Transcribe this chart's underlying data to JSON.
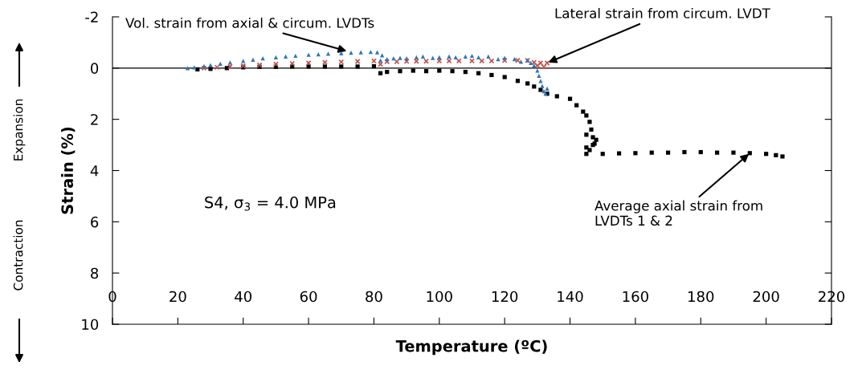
{
  "chart_data": {
    "type": "scatter",
    "xlabel": "Temperature (ºC)",
    "ylabel": "Strain (%)",
    "xlim": [
      0,
      220
    ],
    "xticks": [
      0,
      20,
      40,
      60,
      80,
      100,
      120,
      140,
      160,
      180,
      200,
      220
    ],
    "ylim": [
      10,
      -2
    ],
    "yticks": [
      10,
      8,
      6,
      4,
      2,
      0,
      -2
    ],
    "grid": false,
    "legend": false,
    "ref_lines": [
      {
        "axis": "y",
        "value": 0,
        "label": null,
        "color": "#000000"
      }
    ],
    "series": [
      {
        "color": "#000000",
        "marker": "square",
        "x": [
          26,
          30,
          35,
          40,
          45,
          50,
          55,
          60,
          65,
          70,
          75,
          80,
          82,
          84,
          88,
          92,
          96,
          100,
          104,
          108,
          112,
          116,
          120,
          124,
          127,
          129,
          131,
          133,
          136,
          140,
          142,
          144,
          145,
          146,
          146.5,
          147,
          147.5,
          145,
          145,
          146,
          147,
          148,
          145,
          150,
          155,
          160,
          165,
          170,
          175,
          180,
          185,
          190,
          195,
          200,
          203,
          205
        ],
        "values": [
          0.05,
          0.03,
          0,
          -0.03,
          -0.05,
          -0.05,
          -0.06,
          -0.06,
          -0.06,
          -0.06,
          -0.06,
          -0.07,
          0.2,
          0.15,
          0.12,
          0.1,
          0.12,
          0.1,
          0.12,
          0.15,
          0.2,
          0.27,
          0.35,
          0.5,
          0.6,
          0.72,
          0.85,
          1.0,
          1.1,
          1.2,
          1.45,
          1.7,
          1.85,
          2.1,
          2.4,
          2.7,
          2.95,
          2.6,
          3.1,
          3.2,
          3.0,
          2.8,
          3.35,
          3.35,
          3.33,
          3.32,
          3.3,
          3.3,
          3.28,
          3.28,
          3.3,
          3.3,
          3.32,
          3.35,
          3.4,
          3.45
        ]
      },
      {
        "color": "#c0504d",
        "marker": "cross",
        "x": [
          28,
          32,
          36,
          40,
          45,
          50,
          55,
          60,
          65,
          70,
          75,
          80,
          82,
          84,
          87,
          90,
          93,
          96,
          100,
          103,
          106,
          110,
          113,
          116,
          120,
          124,
          127,
          129,
          130,
          131,
          132,
          133
        ],
        "values": [
          0,
          -0.03,
          -0.06,
          -0.09,
          -0.12,
          -0.15,
          -0.18,
          -0.2,
          -0.22,
          -0.24,
          -0.26,
          -0.28,
          -0.15,
          -0.25,
          -0.25,
          -0.27,
          -0.27,
          -0.27,
          -0.28,
          -0.28,
          -0.28,
          -0.28,
          -0.28,
          -0.28,
          -0.3,
          -0.3,
          -0.3,
          -0.22,
          -0.1,
          -0.2,
          -0.05,
          -0.2
        ]
      },
      {
        "color": "#2e75b6",
        "marker": "triangle",
        "x": [
          23,
          25,
          28,
          30,
          33,
          36,
          40,
          43,
          46,
          50,
          53,
          56,
          60,
          63,
          66,
          70,
          73,
          76,
          79,
          81,
          82,
          82.5,
          84,
          86,
          88,
          90,
          93,
          95,
          98,
          100,
          103,
          105,
          108,
          110,
          112,
          115,
          118,
          120,
          123,
          125,
          127,
          128,
          129,
          130,
          130.5,
          131,
          131.5,
          132,
          132.5,
          133
        ],
        "values": [
          0,
          -0.03,
          -0.08,
          -0.12,
          -0.17,
          -0.22,
          -0.28,
          -0.33,
          -0.38,
          -0.42,
          -0.45,
          -0.48,
          -0.52,
          -0.54,
          -0.56,
          -0.58,
          -0.6,
          -0.62,
          -0.63,
          -0.62,
          -0.3,
          -0.5,
          -0.35,
          -0.38,
          -0.4,
          -0.38,
          -0.42,
          -0.45,
          -0.4,
          -0.42,
          -0.45,
          -0.42,
          -0.45,
          -0.48,
          -0.42,
          -0.45,
          -0.35,
          -0.4,
          -0.35,
          -0.25,
          -0.3,
          -0.2,
          -0.1,
          0.1,
          0.3,
          0.5,
          0.7,
          0.9,
          1.0,
          0.8
        ]
      }
    ],
    "annotations": [
      {
        "text": "Vol. strain from axial & circum. LVDTs",
        "x": 72,
        "y": -0.65
      },
      {
        "text": "Lateral strain from circum. LVDT",
        "x": 133,
        "y": -0.2
      },
      {
        "text": "Average axial strain from\nLVDTs 1 & 2",
        "x": 195,
        "y": 3.32
      },
      "S4, σ$_{3}$ = 4.0 MPa",
      "Expansion",
      "Contraction"
    ]
  }
}
